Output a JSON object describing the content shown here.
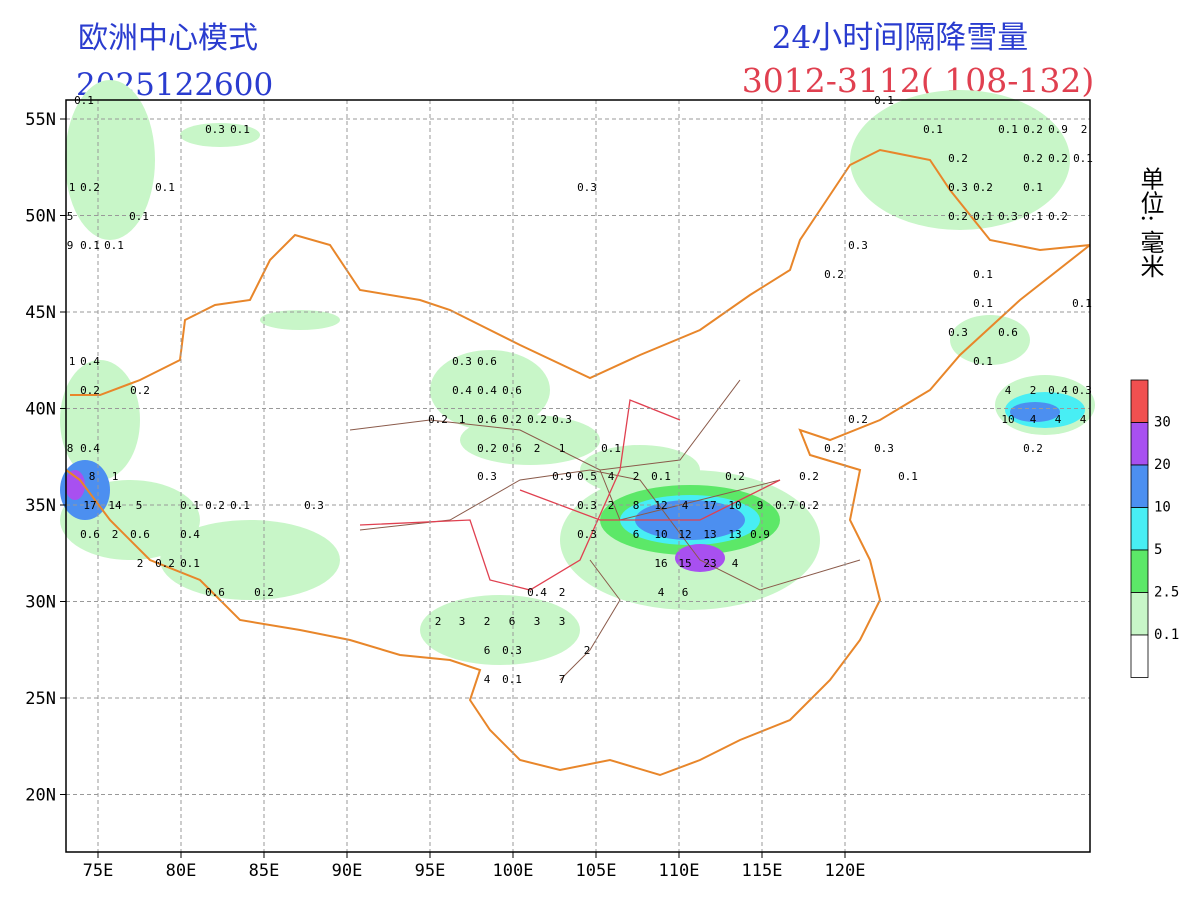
{
  "header": {
    "model": "欧洲中心模式",
    "init_time": "2025122600",
    "product": "24小时间隔降雪量",
    "period": "3012-3112( 108-132)"
  },
  "map": {
    "lat_labels": [
      "55N",
      "50N",
      "45N",
      "40N",
      "35N",
      "30N",
      "25N",
      "20N"
    ],
    "lon_labels": [
      "75E",
      "80E",
      "85E",
      "90E",
      "95E",
      "100E",
      "105E",
      "110E",
      "115E",
      "120E"
    ],
    "unit": "单位: 毫米",
    "legend": {
      "labels": [
        "30",
        "20",
        "10",
        "5",
        "2.5",
        "0.1"
      ],
      "colors": [
        "#f05050",
        "#a850f0",
        "#4c8ff0",
        "#48eef4",
        "#5ce868",
        "#c8f6c8",
        "#ffffff"
      ]
    },
    "station_values": [
      "0.1",
      "0.3",
      "0.1",
      "1",
      "0.2",
      "0.1",
      "5",
      "0.1",
      "9",
      "0.1",
      "0.1",
      "1",
      "0.4",
      "0.2",
      "0.2",
      "8",
      "0.4",
      "8",
      "1",
      "17",
      "14",
      "5",
      "0.6",
      "2",
      "0.6",
      "2",
      "0.2",
      "0.1",
      "0.1",
      "0.2",
      "0.1",
      "0.4",
      "0.6",
      "0.2",
      "0.3",
      "0.3",
      "0.6",
      "0.4",
      "0.4",
      "0.6",
      "0.2",
      "1",
      "0.6",
      "0.2",
      "0.2",
      "0.3",
      "0.2",
      "0.6",
      "2",
      "1",
      "0.1",
      "0.3",
      "0.9",
      "0.5",
      "4",
      "2",
      "0.1",
      "0.2",
      "0.2",
      "0.3",
      "2",
      "8",
      "12",
      "4",
      "17",
      "10",
      "9",
      "0.7",
      "0.2",
      "0.3",
      "6",
      "10",
      "12",
      "13",
      "13",
      "0.9",
      "16",
      "15",
      "23",
      "4",
      "0.4",
      "2",
      "4",
      "6",
      "2",
      "3",
      "2",
      "6",
      "3",
      "3",
      "6",
      "0.3",
      "2",
      "4",
      "0.1",
      "7",
      "0.3",
      "0.3",
      "0.2",
      "0.2",
      "0.2",
      "0.3",
      "0.1",
      "0.1",
      "0.1",
      "0.1",
      "0.2",
      "0.9",
      "2",
      "0.2",
      "0.2",
      "0.2",
      "0.1",
      "0.3",
      "0.2",
      "0.1",
      "0.2",
      "0.1",
      "0.3",
      "0.1",
      "0.2",
      "0.1",
      "0.1",
      "0.1",
      "0.3",
      "0.6",
      "0.1",
      "4",
      "2",
      "0.4",
      "0.3",
      "10",
      "4",
      "4",
      "4",
      "0.2"
    ]
  }
}
